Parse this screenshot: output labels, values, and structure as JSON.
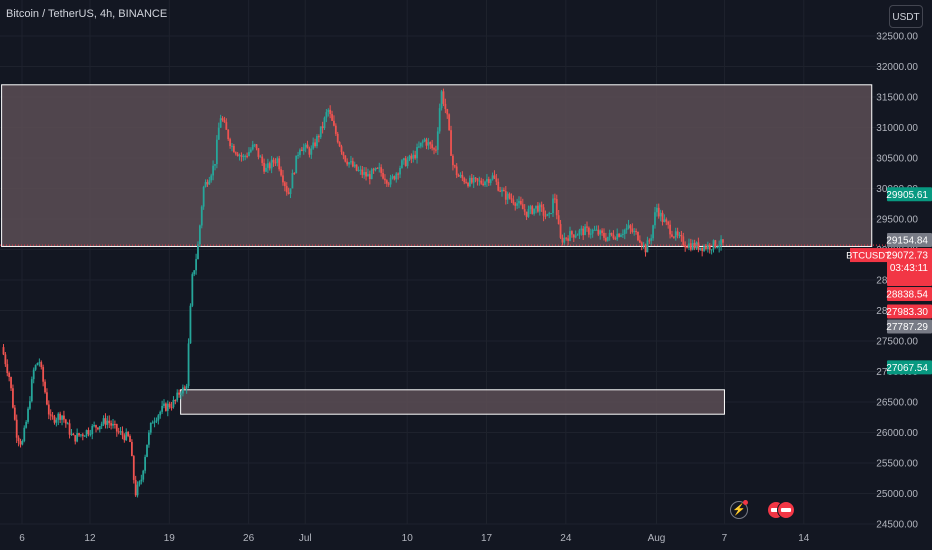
{
  "header": {
    "ticker": "Bitcoin / TetherUS, 4h, BINANCE"
  },
  "toolbar": {
    "unit_label": "USDT"
  },
  "colors": {
    "background": "#131722",
    "up": "#26a69a",
    "down": "#ef5350",
    "zone_fill": "#5c4d55",
    "zone_stroke": "#ffffff",
    "label_green": "#089981",
    "label_red": "#f23645",
    "label_gray": "#787b86"
  },
  "chart_data": {
    "type": "candlestick",
    "symbol": "BTCUSDT",
    "interval": "4h",
    "exchange": "BINANCE",
    "ylim": [
      24500,
      32750
    ],
    "y_ticks": [
      "24500.00",
      "25000.00",
      "25500.00",
      "26000.00",
      "26500.00",
      "27000.00",
      "27500.00",
      "28000.00",
      "28500.00",
      "29000.00",
      "29500.00",
      "30000.00",
      "30500.00",
      "31000.00",
      "31500.00",
      "32000.00",
      "32500.00"
    ],
    "x_ticks": [
      {
        "label": "6",
        "x": 0.5
      },
      {
        "label": "12",
        "x": 6.5
      },
      {
        "label": "19",
        "x": 13.5
      },
      {
        "label": "26",
        "x": 20.5
      },
      {
        "label": "Jul",
        "x": 25.5
      },
      {
        "label": "10",
        "x": 34.5
      },
      {
        "label": "17",
        "x": 41.5
      },
      {
        "label": "24",
        "x": 48.5
      },
      {
        "label": "Aug",
        "x": 56.5
      },
      {
        "label": "7",
        "x": 62.5
      },
      {
        "label": "14",
        "x": 69.5
      }
    ],
    "x_range": [
      -1.3,
      77.7
    ],
    "close_points": [
      [
        -1.3,
        27400
      ],
      [
        -0.6,
        26900
      ],
      [
        0,
        26000
      ],
      [
        0.5,
        25800
      ],
      [
        1,
        26300
      ],
      [
        1.5,
        27000
      ],
      [
        2,
        27200
      ],
      [
        3,
        26200
      ],
      [
        4,
        26300
      ],
      [
        5,
        25900
      ],
      [
        6,
        26000
      ],
      [
        7,
        26100
      ],
      [
        8,
        26200
      ],
      [
        9,
        26000
      ],
      [
        10,
        25900
      ],
      [
        10.5,
        25000
      ],
      [
        11,
        25200
      ],
      [
        11.5,
        25800
      ],
      [
        12,
        26200
      ],
      [
        13,
        26400
      ],
      [
        14,
        26500
      ],
      [
        14.5,
        26700
      ],
      [
        15,
        26700
      ],
      [
        15.5,
        28500
      ],
      [
        16,
        29000
      ],
      [
        16.5,
        30000
      ],
      [
        17,
        30200
      ],
      [
        17.5,
        30400
      ],
      [
        18,
        31200
      ],
      [
        19,
        30700
      ],
      [
        20,
        30500
      ],
      [
        21,
        30700
      ],
      [
        22,
        30300
      ],
      [
        23,
        30500
      ],
      [
        24,
        29900
      ],
      [
        25,
        30700
      ],
      [
        26,
        30600
      ],
      [
        27,
        31000
      ],
      [
        27.5,
        31300
      ],
      [
        28,
        31000
      ],
      [
        29,
        30500
      ],
      [
        30,
        30300
      ],
      [
        31,
        30200
      ],
      [
        32,
        30300
      ],
      [
        33,
        30100
      ],
      [
        34,
        30400
      ],
      [
        35,
        30500
      ],
      [
        36,
        30800
      ],
      [
        37,
        30600
      ],
      [
        37.5,
        31600
      ],
      [
        38,
        31200
      ],
      [
        38.5,
        30400
      ],
      [
        39,
        30200
      ],
      [
        40,
        30100
      ],
      [
        41,
        30100
      ],
      [
        42,
        30200
      ],
      [
        43,
        29900
      ],
      [
        44,
        29800
      ],
      [
        45,
        29600
      ],
      [
        46,
        29700
      ],
      [
        47,
        29500
      ],
      [
        47.5,
        29900
      ],
      [
        48,
        29150
      ],
      [
        49,
        29250
      ],
      [
        50,
        29300
      ],
      [
        51,
        29300
      ],
      [
        52,
        29200
      ],
      [
        53,
        29250
      ],
      [
        54,
        29350
      ],
      [
        55,
        29200
      ],
      [
        55.5,
        29000
      ],
      [
        56,
        29200
      ],
      [
        56.5,
        29700
      ],
      [
        57,
        29500
      ],
      [
        58,
        29250
      ],
      [
        59,
        29100
      ],
      [
        60,
        29050
      ],
      [
        61,
        29050
      ],
      [
        62,
        29100
      ],
      [
        62.5,
        29072.73
      ]
    ],
    "zones": [
      {
        "y_top": 31700,
        "y_bottom": 29050,
        "x_start": -1.3,
        "x_end": 75.5
      },
      {
        "y_top": 26700,
        "y_bottom": 26300,
        "x_start": 14.5,
        "x_end": 62.5
      }
    ],
    "price_line": 29072.73,
    "price_labels": [
      {
        "value": "29905.61",
        "price": 29905.61,
        "color": "green"
      },
      {
        "value": "29154.84",
        "price": 29154.84,
        "color": "gray"
      },
      {
        "value": "29072.73",
        "price": 29072.73,
        "color": "red",
        "symbol": "BTCUSDT",
        "countdown": "03:43:11"
      },
      {
        "value": "28838.54",
        "price": 28838.54,
        "color": "red"
      },
      {
        "value": "27983.30",
        "price": 27983.3,
        "color": "red"
      },
      {
        "value": "27787.29",
        "price": 27787.29,
        "color": "gray"
      },
      {
        "value": "27067.54",
        "price": 27067.54,
        "color": "green"
      }
    ]
  }
}
